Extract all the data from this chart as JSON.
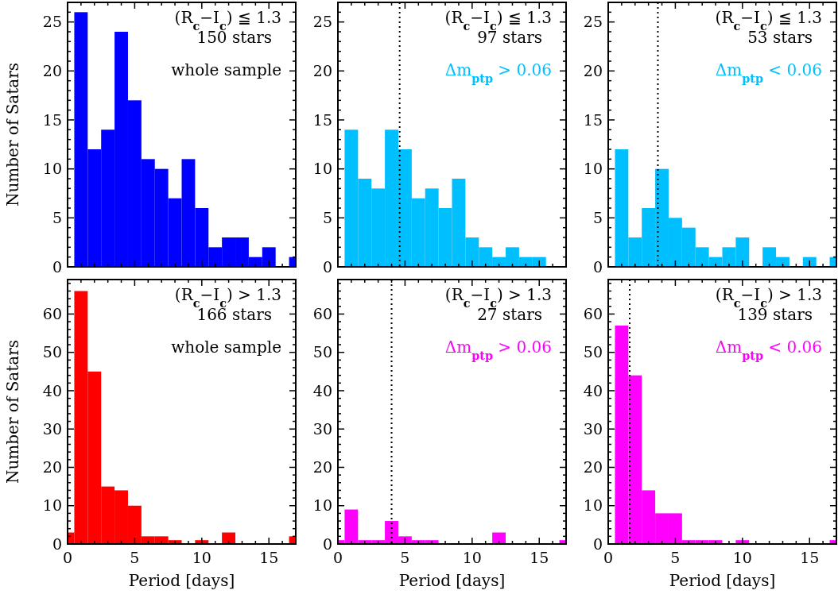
{
  "chart_data": [
    {
      "type": "histogram",
      "ylabel": "Number of Satars",
      "color": "#0000ff",
      "bins": [
        0.5,
        1.5,
        2.5,
        3.5,
        4.5,
        5.5,
        6.5,
        7.5,
        8.5,
        9.5,
        10.5,
        11.5,
        12.5,
        13.5,
        14.5,
        15.5,
        16.5,
        17
      ],
      "values": [
        26,
        12,
        14,
        24,
        17,
        11,
        10,
        7,
        11,
        6,
        2,
        3,
        3,
        1,
        2,
        0,
        1
      ],
      "xlim": [
        0,
        17
      ],
      "ylim": [
        0,
        27
      ],
      "xticks": [
        0,
        {
          "value": 1,
          "label": null
        },
        {
          "value": 2,
          "label": null
        },
        {
          "value": 3,
          "label": null
        },
        {
          "value": 4,
          "label": null
        },
        5,
        {
          "value": 6,
          "label": null
        },
        {
          "value": 7,
          "label": null
        },
        {
          "value": 8,
          "label": null
        },
        {
          "value": 9,
          "label": null
        },
        10,
        {
          "value": 11,
          "label": null
        },
        {
          "value": 12,
          "label": null
        },
        {
          "value": 13,
          "label": null
        },
        {
          "value": 14,
          "label": null
        },
        15,
        {
          "value": 16,
          "label": null
        }
      ],
      "yticks": [
        0,
        {
          "value": 1,
          "label": null
        },
        {
          "value": 2,
          "label": null
        },
        {
          "value": 3,
          "label": null
        },
        {
          "value": 4,
          "label": null
        },
        5,
        {
          "value": 6,
          "label": null
        },
        {
          "value": 7,
          "label": null
        },
        {
          "value": 8,
          "label": null
        },
        {
          "value": 9,
          "label": null
        },
        10,
        {
          "value": 11,
          "label": null
        },
        {
          "value": 12,
          "label": null
        },
        {
          "value": 13,
          "label": null
        },
        {
          "value": 14,
          "label": null
        },
        15,
        {
          "value": 16,
          "label": null
        },
        {
          "value": 17,
          "label": null
        },
        {
          "value": 18,
          "label": null
        },
        {
          "value": 19,
          "label": null
        },
        20,
        {
          "value": 21,
          "label": null
        },
        {
          "value": 22,
          "label": null
        },
        {
          "value": 23,
          "label": null
        },
        {
          "value": 24,
          "label": null
        },
        25,
        {
          "value": 26,
          "label": null
        }
      ],
      "tick_labels": "y",
      "annotations": [
        "(R$_{c}$−I$_{c}$) ≦ 1.3",
        "150 stars",
        "whole sample"
      ]
    },
    {
      "type": "histogram",
      "color": "#00bfff",
      "bins": [
        0.5,
        1.5,
        2.5,
        3.5,
        4.5,
        5.5,
        6.5,
        7.5,
        8.5,
        9.5,
        10.5,
        11.5,
        12.5,
        13.5,
        14.5,
        15.5
      ],
      "values": [
        14,
        9,
        8,
        14,
        12,
        7,
        8,
        6,
        9,
        3,
        2,
        1,
        2,
        1,
        1
      ],
      "xlim": [
        0,
        17
      ],
      "ylim": [
        0,
        27
      ],
      "xticks": [
        0,
        {
          "value": 1,
          "label": null
        },
        {
          "value": 2,
          "label": null
        },
        {
          "value": 3,
          "label": null
        },
        {
          "value": 4,
          "label": null
        },
        5,
        {
          "value": 6,
          "label": null
        },
        {
          "value": 7,
          "label": null
        },
        {
          "value": 8,
          "label": null
        },
        {
          "value": 9,
          "label": null
        },
        10,
        {
          "value": 11,
          "label": null
        },
        {
          "value": 12,
          "label": null
        },
        {
          "value": 13,
          "label": null
        },
        {
          "value": 14,
          "label": null
        },
        15,
        {
          "value": 16,
          "label": null
        }
      ],
      "yticks": [
        0,
        {
          "value": 1,
          "label": null
        },
        {
          "value": 2,
          "label": null
        },
        {
          "value": 3,
          "label": null
        },
        {
          "value": 4,
          "label": null
        },
        5,
        {
          "value": 6,
          "label": null
        },
        {
          "value": 7,
          "label": null
        },
        {
          "value": 8,
          "label": null
        },
        {
          "value": 9,
          "label": null
        },
        10,
        {
          "value": 11,
          "label": null
        },
        {
          "value": 12,
          "label": null
        },
        {
          "value": 13,
          "label": null
        },
        {
          "value": 14,
          "label": null
        },
        15,
        {
          "value": 16,
          "label": null
        },
        {
          "value": 17,
          "label": null
        },
        {
          "value": 18,
          "label": null
        },
        {
          "value": 19,
          "label": null
        },
        20,
        {
          "value": 21,
          "label": null
        },
        {
          "value": 22,
          "label": null
        },
        {
          "value": 23,
          "label": null
        },
        {
          "value": 24,
          "label": null
        },
        25,
        {
          "value": 26,
          "label": null
        }
      ],
      "tick_labels": "y",
      "ref_lines": [
        {
          "axis": "x",
          "value": 4.6,
          "line_style": "dotted",
          "color": "#000000"
        }
      ],
      "annotations": [
        "(R$_{c}$−I$_{c}$) ≦ 1.3",
        "97 stars",
        "Δm$_{ptp}$ > 0.06"
      ]
    },
    {
      "type": "histogram",
      "color": "#00bfff",
      "bins": [
        0.5,
        1.5,
        2.5,
        3.5,
        4.5,
        5.5,
        6.5,
        7.5,
        8.5,
        9.5,
        10.5,
        11.5,
        12.5,
        13.5,
        14.5,
        15.5,
        16.5,
        17
      ],
      "values": [
        12,
        3,
        6,
        10,
        5,
        4,
        2,
        1,
        2,
        3,
        0,
        2,
        1,
        0,
        1,
        0,
        1
      ],
      "xlim": [
        0,
        17
      ],
      "ylim": [
        0,
        27
      ],
      "xticks": [
        0,
        {
          "value": 1,
          "label": null
        },
        {
          "value": 2,
          "label": null
        },
        {
          "value": 3,
          "label": null
        },
        {
          "value": 4,
          "label": null
        },
        5,
        {
          "value": 6,
          "label": null
        },
        {
          "value": 7,
          "label": null
        },
        {
          "value": 8,
          "label": null
        },
        {
          "value": 9,
          "label": null
        },
        10,
        {
          "value": 11,
          "label": null
        },
        {
          "value": 12,
          "label": null
        },
        {
          "value": 13,
          "label": null
        },
        {
          "value": 14,
          "label": null
        },
        15,
        {
          "value": 16,
          "label": null
        }
      ],
      "yticks": [
        0,
        {
          "value": 1,
          "label": null
        },
        {
          "value": 2,
          "label": null
        },
        {
          "value": 3,
          "label": null
        },
        {
          "value": 4,
          "label": null
        },
        5,
        {
          "value": 6,
          "label": null
        },
        {
          "value": 7,
          "label": null
        },
        {
          "value": 8,
          "label": null
        },
        {
          "value": 9,
          "label": null
        },
        10,
        {
          "value": 11,
          "label": null
        },
        {
          "value": 12,
          "label": null
        },
        {
          "value": 13,
          "label": null
        },
        {
          "value": 14,
          "label": null
        },
        15,
        {
          "value": 16,
          "label": null
        },
        {
          "value": 17,
          "label": null
        },
        {
          "value": 18,
          "label": null
        },
        {
          "value": 19,
          "label": null
        },
        20,
        {
          "value": 21,
          "label": null
        },
        {
          "value": 22,
          "label": null
        },
        {
          "value": 23,
          "label": null
        },
        {
          "value": 24,
          "label": null
        },
        25,
        {
          "value": 26,
          "label": null
        }
      ],
      "tick_labels": "y",
      "ref_lines": [
        {
          "axis": "x",
          "value": 3.7,
          "line_style": "dotted",
          "color": "#000000"
        }
      ],
      "annotations": [
        "(R$_{c}$−I$_{c}$) ≦ 1.3",
        "53 stars",
        "Δm$_{ptp}$ < 0.06"
      ]
    },
    {
      "type": "histogram",
      "xlabel": "Period [days]",
      "ylabel": "Number of Satars",
      "color": "#ff0000",
      "bins": [
        0,
        0.5,
        1.5,
        2.5,
        3.5,
        4.5,
        5.5,
        6.5,
        7.5,
        8.5,
        9.5,
        10.5,
        11.5,
        12.5,
        16.5,
        17
      ],
      "values": [
        3,
        66,
        45,
        15,
        14,
        10,
        2,
        2,
        1,
        0,
        1,
        0,
        3,
        0,
        2
      ],
      "xlim": [
        0,
        17
      ],
      "ylim": [
        0,
        69
      ],
      "xticks": [
        0,
        {
          "value": 1,
          "label": null
        },
        {
          "value": 2,
          "label": null
        },
        {
          "value": 3,
          "label": null
        },
        {
          "value": 4,
          "label": null
        },
        5,
        {
          "value": 6,
          "label": null
        },
        {
          "value": 7,
          "label": null
        },
        {
          "value": 8,
          "label": null
        },
        {
          "value": 9,
          "label": null
        },
        10,
        {
          "value": 11,
          "label": null
        },
        {
          "value": 12,
          "label": null
        },
        {
          "value": 13,
          "label": null
        },
        {
          "value": 14,
          "label": null
        },
        15,
        {
          "value": 16,
          "label": null
        }
      ],
      "yticks": [
        0,
        {
          "value": 2,
          "label": null
        },
        {
          "value": 4,
          "label": null
        },
        {
          "value": 6,
          "label": null
        },
        {
          "value": 8,
          "label": null
        },
        10,
        {
          "value": 12,
          "label": null
        },
        {
          "value": 14,
          "label": null
        },
        {
          "value": 16,
          "label": null
        },
        {
          "value": 18,
          "label": null
        },
        20,
        {
          "value": 22,
          "label": null
        },
        {
          "value": 24,
          "label": null
        },
        {
          "value": 26,
          "label": null
        },
        {
          "value": 28,
          "label": null
        },
        30,
        {
          "value": 32,
          "label": null
        },
        {
          "value": 34,
          "label": null
        },
        {
          "value": 36,
          "label": null
        },
        {
          "value": 38,
          "label": null
        },
        40,
        {
          "value": 42,
          "label": null
        },
        {
          "value": 44,
          "label": null
        },
        {
          "value": 46,
          "label": null
        },
        {
          "value": 48,
          "label": null
        },
        50,
        {
          "value": 52,
          "label": null
        },
        {
          "value": 54,
          "label": null
        },
        {
          "value": 56,
          "label": null
        },
        {
          "value": 58,
          "label": null
        },
        60,
        {
          "value": 62,
          "label": null
        },
        {
          "value": 64,
          "label": null
        },
        {
          "value": 66,
          "label": null
        },
        {
          "value": 68,
          "label": null
        }
      ],
      "annotations": [
        "(R$_{c}$−I$_{c}$) > 1.3",
        "166 stars",
        "whole sample"
      ]
    },
    {
      "type": "histogram",
      "xlabel": "Period [days]",
      "color": "#ff00ff",
      "bins": [
        0,
        0.5,
        1.5,
        2.5,
        3.5,
        4.5,
        5.5,
        6.5,
        7.5,
        11.5,
        12.5,
        16.5,
        17
      ],
      "values": [
        1,
        9,
        1,
        1,
        6,
        2,
        1,
        1,
        0,
        3,
        0,
        1
      ],
      "xlim": [
        0,
        17
      ],
      "ylim": [
        0,
        69
      ],
      "xticks": [
        0,
        {
          "value": 1,
          "label": null
        },
        {
          "value": 2,
          "label": null
        },
        {
          "value": 3,
          "label": null
        },
        {
          "value": 4,
          "label": null
        },
        5,
        {
          "value": 6,
          "label": null
        },
        {
          "value": 7,
          "label": null
        },
        {
          "value": 8,
          "label": null
        },
        {
          "value": 9,
          "label": null
        },
        10,
        {
          "value": 11,
          "label": null
        },
        {
          "value": 12,
          "label": null
        },
        {
          "value": 13,
          "label": null
        },
        {
          "value": 14,
          "label": null
        },
        15,
        {
          "value": 16,
          "label": null
        }
      ],
      "yticks": [
        0,
        {
          "value": 2,
          "label": null
        },
        {
          "value": 4,
          "label": null
        },
        {
          "value": 6,
          "label": null
        },
        {
          "value": 8,
          "label": null
        },
        10,
        {
          "value": 12,
          "label": null
        },
        {
          "value": 14,
          "label": null
        },
        {
          "value": 16,
          "label": null
        },
        {
          "value": 18,
          "label": null
        },
        20,
        {
          "value": 22,
          "label": null
        },
        {
          "value": 24,
          "label": null
        },
        {
          "value": 26,
          "label": null
        },
        {
          "value": 28,
          "label": null
        },
        30,
        {
          "value": 32,
          "label": null
        },
        {
          "value": 34,
          "label": null
        },
        {
          "value": 36,
          "label": null
        },
        {
          "value": 38,
          "label": null
        },
        40,
        {
          "value": 42,
          "label": null
        },
        {
          "value": 44,
          "label": null
        },
        {
          "value": 46,
          "label": null
        },
        {
          "value": 48,
          "label": null
        },
        50,
        {
          "value": 52,
          "label": null
        },
        {
          "value": 54,
          "label": null
        },
        {
          "value": 56,
          "label": null
        },
        {
          "value": 58,
          "label": null
        },
        60,
        {
          "value": 62,
          "label": null
        },
        {
          "value": 64,
          "label": null
        },
        {
          "value": 66,
          "label": null
        },
        {
          "value": 68,
          "label": null
        }
      ],
      "ref_lines": [
        {
          "axis": "x",
          "value": 4.0,
          "line_style": "dotted",
          "color": "#000000"
        }
      ],
      "annotations": [
        "(R$_{c}$−I$_{c}$) > 1.3",
        "27 stars",
        "Δm$_{ptp}$ > 0.06"
      ]
    },
    {
      "type": "histogram",
      "xlabel": "Period [days]",
      "color": "#ff00ff",
      "bins": [
        0.5,
        1.5,
        2.5,
        3.5,
        4.5,
        5.5,
        6.5,
        7.5,
        8.5,
        9.5,
        10.5,
        16.5,
        17
      ],
      "values": [
        57,
        44,
        14,
        8,
        8,
        1,
        1,
        1,
        0,
        1,
        0,
        1
      ],
      "xlim": [
        0,
        17
      ],
      "ylim": [
        0,
        69
      ],
      "xticks": [
        0,
        {
          "value": 1,
          "label": null
        },
        {
          "value": 2,
          "label": null
        },
        {
          "value": 3,
          "label": null
        },
        {
          "value": 4,
          "label": null
        },
        5,
        {
          "value": 6,
          "label": null
        },
        {
          "value": 7,
          "label": null
        },
        {
          "value": 8,
          "label": null
        },
        {
          "value": 9,
          "label": null
        },
        10,
        {
          "value": 11,
          "label": null
        },
        {
          "value": 12,
          "label": null
        },
        {
          "value": 13,
          "label": null
        },
        {
          "value": 14,
          "label": null
        },
        15,
        {
          "value": 16,
          "label": null
        }
      ],
      "yticks": [
        0,
        {
          "value": 2,
          "label": null
        },
        {
          "value": 4,
          "label": null
        },
        {
          "value": 6,
          "label": null
        },
        {
          "value": 8,
          "label": null
        },
        10,
        {
          "value": 12,
          "label": null
        },
        {
          "value": 14,
          "label": null
        },
        {
          "value": 16,
          "label": null
        },
        {
          "value": 18,
          "label": null
        },
        20,
        {
          "value": 22,
          "label": null
        },
        {
          "value": 24,
          "label": null
        },
        {
          "value": 26,
          "label": null
        },
        {
          "value": 28,
          "label": null
        },
        30,
        {
          "value": 32,
          "label": null
        },
        {
          "value": 34,
          "label": null
        },
        {
          "value": 36,
          "label": null
        },
        {
          "value": 38,
          "label": null
        },
        40,
        {
          "value": 42,
          "label": null
        },
        {
          "value": 44,
          "label": null
        },
        {
          "value": 46,
          "label": null
        },
        {
          "value": 48,
          "label": null
        },
        50,
        {
          "value": 52,
          "label": null
        },
        {
          "value": 54,
          "label": null
        },
        {
          "value": 56,
          "label": null
        },
        {
          "value": 58,
          "label": null
        },
        60,
        {
          "value": 62,
          "label": null
        },
        {
          "value": 64,
          "label": null
        },
        {
          "value": 66,
          "label": null
        },
        {
          "value": 68,
          "label": null
        }
      ],
      "ref_lines": [
        {
          "axis": "x",
          "value": 1.6,
          "line_style": "dotted",
          "color": "#000000"
        }
      ],
      "annotations": [
        "(R$_{c}$−I$_{c}$) > 1.3",
        "139 stars",
        "Δm$_{ptp}$ < 0.06"
      ]
    }
  ]
}
